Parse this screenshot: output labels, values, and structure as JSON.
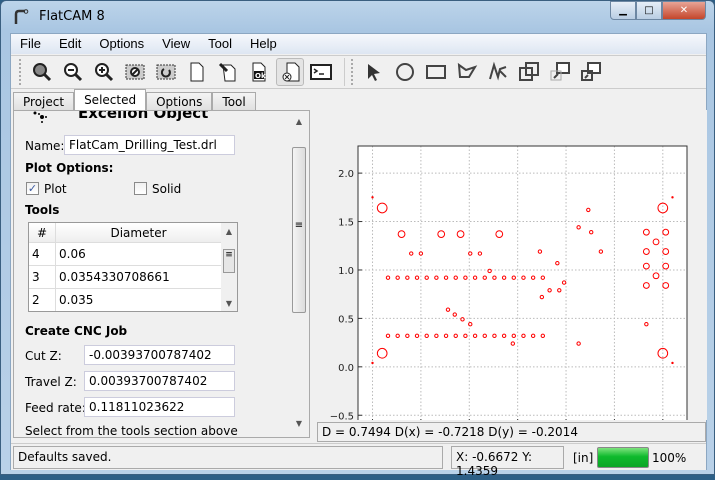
{
  "window": {
    "title": "FlatCAM 8",
    "controls": [
      "minimize",
      "maximize",
      "close"
    ]
  },
  "menu": [
    "File",
    "Edit",
    "Options",
    "View",
    "Tool",
    "Help"
  ],
  "toolbar": {
    "left": [
      "zoom-fit-icon",
      "zoom-out-icon",
      "zoom-in-icon",
      "clear-plot-icon",
      "replot-icon",
      "new-file-icon",
      "edit-file-icon",
      "ok-file-icon",
      "delete-file-icon",
      "shell-icon"
    ],
    "right": [
      "select-arrow-icon",
      "circle-icon",
      "rectangle-icon",
      "polygon-icon",
      "path-icon",
      "union-icon",
      "move-icon",
      "copy-icon"
    ]
  },
  "tabs": [
    {
      "label": "Project"
    },
    {
      "label": "Selected",
      "active": true
    },
    {
      "label": "Options"
    },
    {
      "label": "Tool"
    }
  ],
  "selected": {
    "heading": "Excellon Object",
    "name_label": "Name:",
    "name_value": "FlatCam_Drilling_Test.drl",
    "plot_options": "Plot Options:",
    "plot_label": "Plot",
    "plot_checked": true,
    "solid_label": "Solid",
    "solid_checked": false,
    "tools_label": "Tools",
    "tools_table": {
      "headers": [
        "#",
        "Diameter"
      ],
      "rows": [
        [
          "4",
          "0.06"
        ],
        [
          "3",
          "0.0354330708661"
        ],
        [
          "2",
          "0.035"
        ]
      ]
    },
    "cnc_heading": "Create CNC Job",
    "cut_z_label": "Cut Z:",
    "cut_z": "-0.00393700787402",
    "travel_z_label": "Travel Z:",
    "travel_z": "0.00393700787402",
    "feed_label": "Feed rate:",
    "feed": "0.11811023622",
    "hint": "Select from the tools section above"
  },
  "readout": "D = 0.7494  D(x) = -0.7218  D(y) = -0.2014",
  "status": {
    "message": "Defaults saved.",
    "coords": "X: -0.6672   Y: 1.4359",
    "units": "[in]",
    "progress_percent": 100,
    "progress_label": "100%"
  },
  "colors": {
    "drill": "#ff0000",
    "progress": "#0fba2d"
  },
  "chart_data": {
    "type": "scatter",
    "marker": "open-circle",
    "xlim": [
      -0.15,
      3.25
    ],
    "ylim": [
      -0.58,
      2.28
    ],
    "xticks": [
      "0.0",
      "0.5",
      "1.0",
      "1.5",
      "2.0",
      "2.5",
      "3.0"
    ],
    "yticks": [
      "−0.5",
      "0.0",
      "0.5",
      "1.0",
      "1.5",
      "2.0"
    ],
    "grid": true,
    "holes": [
      {
        "d": 0.1,
        "pts": [
          [
            0.1,
            1.64
          ],
          [
            0.1,
            0.14
          ],
          [
            3.0,
            1.64
          ],
          [
            3.0,
            0.14
          ]
        ]
      },
      {
        "d": 0.07,
        "pts": [
          [
            0.3,
            1.37
          ],
          [
            0.71,
            1.37
          ],
          [
            0.91,
            1.37
          ],
          [
            1.31,
            1.37
          ]
        ]
      },
      {
        "d": 0.06,
        "pts": [
          [
            2.83,
            1.39
          ],
          [
            3.03,
            1.39
          ],
          [
            2.93,
            1.29
          ],
          [
            2.83,
            1.19
          ],
          [
            3.03,
            1.19
          ],
          [
            2.83,
            1.04
          ],
          [
            3.03,
            1.04
          ],
          [
            2.93,
            0.94
          ],
          [
            2.83,
            0.84
          ],
          [
            3.03,
            0.84
          ]
        ]
      },
      {
        "d": 0.035,
        "pts": [
          [
            0.16,
            0.92
          ],
          [
            0.26,
            0.92
          ],
          [
            0.36,
            0.92
          ],
          [
            0.46,
            0.92
          ],
          [
            0.56,
            0.92
          ],
          [
            0.66,
            0.92
          ],
          [
            0.76,
            0.92
          ],
          [
            0.86,
            0.92
          ],
          [
            0.96,
            0.92
          ],
          [
            1.06,
            0.92
          ],
          [
            1.16,
            0.92
          ],
          [
            1.26,
            0.92
          ],
          [
            1.36,
            0.92
          ],
          [
            1.46,
            0.92
          ],
          [
            1.56,
            0.92
          ],
          [
            1.66,
            0.92
          ],
          [
            1.76,
            0.92
          ],
          [
            0.16,
            0.32
          ],
          [
            0.26,
            0.32
          ],
          [
            0.36,
            0.32
          ],
          [
            0.46,
            0.32
          ],
          [
            0.56,
            0.32
          ],
          [
            0.66,
            0.32
          ],
          [
            0.76,
            0.32
          ],
          [
            0.86,
            0.32
          ],
          [
            0.96,
            0.32
          ],
          [
            1.06,
            0.32
          ],
          [
            1.16,
            0.32
          ],
          [
            1.26,
            0.32
          ],
          [
            1.36,
            0.32
          ],
          [
            1.46,
            0.32
          ],
          [
            1.56,
            0.32
          ],
          [
            1.66,
            0.32
          ],
          [
            1.76,
            0.32
          ],
          [
            0.4,
            1.17
          ],
          [
            0.5,
            1.17
          ],
          [
            1.01,
            1.17
          ],
          [
            1.11,
            1.17
          ],
          [
            1.21,
            0.99
          ],
          [
            1.73,
            1.19
          ],
          [
            1.91,
            1.07
          ],
          [
            1.75,
            0.72
          ],
          [
            1.83,
            0.79
          ],
          [
            1.93,
            0.79
          ],
          [
            1.98,
            0.87
          ],
          [
            2.13,
            1.44
          ],
          [
            2.23,
            1.62
          ],
          [
            2.26,
            1.39
          ],
          [
            2.36,
            1.19
          ],
          [
            0.78,
            0.59
          ],
          [
            0.85,
            0.54
          ],
          [
            0.93,
            0.49
          ],
          [
            1.01,
            0.44
          ],
          [
            1.45,
            0.24
          ],
          [
            2.13,
            0.24
          ],
          [
            2.83,
            0.44
          ]
        ]
      },
      {
        "d": 0.01,
        "pts": [
          [
            0.0,
            1.75
          ],
          [
            0.0,
            0.04
          ],
          [
            3.1,
            1.75
          ],
          [
            3.1,
            0.04
          ]
        ]
      }
    ]
  }
}
